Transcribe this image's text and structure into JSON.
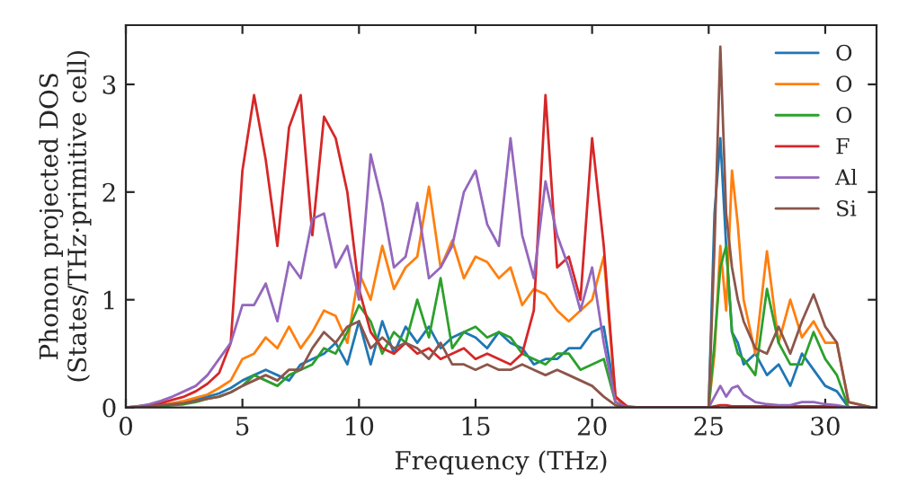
{
  "chart_data": {
    "type": "line",
    "xlabel": "Frequency (THz)",
    "ylabel": "Phonon projected DOS\n(States/THz·primitive cell)",
    "x": [
      0,
      0.5,
      1,
      1.5,
      2,
      2.5,
      3,
      3.5,
      4,
      4.5,
      5,
      5.5,
      6,
      6.5,
      7,
      7.5,
      8,
      8.5,
      9,
      9.5,
      10,
      10.5,
      11,
      11.5,
      12,
      12.5,
      13,
      13.5,
      14,
      14.5,
      15,
      15.5,
      16,
      16.5,
      17,
      17.5,
      18,
      18.5,
      19,
      19.5,
      20,
      20.5,
      21,
      21.5,
      22,
      25,
      25.25,
      25.5,
      25.75,
      26,
      26.25,
      26.5,
      27,
      27.5,
      28,
      28.5,
      29,
      29.5,
      30,
      30.5,
      31,
      32
    ],
    "series": [
      {
        "name": "O",
        "color": "#1f77b4",
        "values": [
          null,
          null,
          null,
          null,
          null,
          0.05,
          0.07,
          0.1,
          0.13,
          0.18,
          0.25,
          0.3,
          0.35,
          0.3,
          0.25,
          0.4,
          0.45,
          0.5,
          0.6,
          0.4,
          0.8,
          0.4,
          0.8,
          0.5,
          0.75,
          0.6,
          0.75,
          0.55,
          0.65,
          0.7,
          0.65,
          0.55,
          0.7,
          0.6,
          0.55,
          0.4,
          0.45,
          0.45,
          0.55,
          0.55,
          0.7,
          0.75,
          0.1,
          0,
          0,
          0,
          1.8,
          2.5,
          1.5,
          0.7,
          0.6,
          0.4,
          0.5,
          0.3,
          0.4,
          0.2,
          0.5,
          0.35,
          0.2,
          0.15,
          0,
          0
        ]
      },
      {
        "name": "O",
        "color": "#ff7f0e",
        "values": [
          null,
          null,
          0.01,
          0.02,
          0.04,
          0.06,
          0.09,
          0.12,
          0.18,
          0.25,
          0.45,
          0.5,
          0.65,
          0.55,
          0.75,
          0.55,
          0.7,
          0.9,
          0.85,
          0.6,
          1.25,
          1.0,
          1.5,
          1.1,
          1.3,
          1.4,
          2.05,
          1.3,
          1.55,
          1.2,
          1.4,
          1.35,
          1.2,
          1.3,
          0.95,
          1.1,
          1.05,
          0.9,
          0.8,
          0.9,
          1.0,
          1.4,
          0.1,
          0,
          0,
          0,
          0.5,
          1.5,
          0.9,
          2.2,
          1.7,
          1.0,
          0.5,
          1.45,
          0.6,
          1.0,
          0.65,
          0.8,
          0.6,
          0.6,
          0.05,
          0
        ]
      },
      {
        "name": "O",
        "color": "#2ca02c",
        "values": [
          null,
          null,
          null,
          0.01,
          0.02,
          0.03,
          0.05,
          0.08,
          0.1,
          0.14,
          0.2,
          0.3,
          0.25,
          0.2,
          0.3,
          0.35,
          0.4,
          0.55,
          0.5,
          0.7,
          0.95,
          0.8,
          0.5,
          0.7,
          0.6,
          1.0,
          0.65,
          1.2,
          0.55,
          0.7,
          0.75,
          0.65,
          0.7,
          0.65,
          0.5,
          0.45,
          0.4,
          0.5,
          0.5,
          0.35,
          0.4,
          0.45,
          0.05,
          0,
          0,
          0,
          0.6,
          1.3,
          1.5,
          0.7,
          0.5,
          0.45,
          0.3,
          1.1,
          0.6,
          0.4,
          0.4,
          0.7,
          0.45,
          0.3,
          0,
          0
        ]
      },
      {
        "name": "F",
        "color": "#d62728",
        "values": [
          0,
          0.01,
          0.02,
          0.04,
          0.07,
          0.1,
          0.15,
          0.22,
          0.32,
          0.6,
          2.2,
          2.9,
          2.3,
          1.5,
          2.6,
          2.9,
          1.6,
          2.7,
          2.5,
          2.0,
          1.1,
          0.7,
          0.55,
          0.5,
          0.6,
          0.5,
          0.55,
          0.45,
          0.5,
          0.55,
          0.45,
          0.5,
          0.45,
          0.4,
          0.5,
          0.9,
          2.9,
          1.3,
          1.4,
          1.0,
          2.5,
          1.5,
          0.1,
          0.01,
          0,
          0,
          0.01,
          0.02,
          0.02,
          0.01,
          0.01,
          0.01,
          0.01,
          0.01,
          0.01,
          0.01,
          0.01,
          0.01,
          0.01,
          0.01,
          0,
          0
        ]
      },
      {
        "name": "Al",
        "color": "#9467bd",
        "values": [
          0,
          0.01,
          0.03,
          0.06,
          0.1,
          0.15,
          0.2,
          0.3,
          0.45,
          0.6,
          0.95,
          0.95,
          1.15,
          0.8,
          1.35,
          1.2,
          1.75,
          1.8,
          1.3,
          1.5,
          1.0,
          2.35,
          1.9,
          1.3,
          1.4,
          1.9,
          1.2,
          1.3,
          1.5,
          2.0,
          2.2,
          1.7,
          1.5,
          2.5,
          1.6,
          1.2,
          2.1,
          1.6,
          1.3,
          0.9,
          1.3,
          0.6,
          0.05,
          0,
          0,
          0,
          0.1,
          0.2,
          0.1,
          0.18,
          0.2,
          0.12,
          0.05,
          0.03,
          0.02,
          0.02,
          0.05,
          0.05,
          0.03,
          0.02,
          0,
          0
        ]
      },
      {
        "name": "Si",
        "color": "#8c564b",
        "values": [
          0,
          0,
          0.01,
          0.02,
          0.03,
          0.04,
          0.06,
          0.08,
          0.1,
          0.14,
          0.2,
          0.25,
          0.3,
          0.25,
          0.35,
          0.35,
          0.55,
          0.7,
          0.6,
          0.75,
          0.8,
          0.55,
          0.65,
          0.55,
          0.6,
          0.55,
          0.45,
          0.6,
          0.4,
          0.4,
          0.35,
          0.4,
          0.35,
          0.35,
          0.4,
          0.35,
          0.3,
          0.35,
          0.3,
          0.25,
          0.2,
          0.1,
          0.02,
          0,
          null,
          0,
          1.5,
          3.35,
          1.8,
          1.3,
          1.0,
          0.8,
          0.55,
          0.5,
          0.75,
          0.5,
          0.8,
          1.05,
          0.75,
          0.6,
          0.05,
          0
        ]
      }
    ],
    "xlim": [
      0,
      32.2
    ],
    "ylim": [
      0,
      3.55
    ],
    "xticks": [
      0,
      5,
      10,
      15,
      20,
      25,
      30
    ],
    "yticks": [
      0,
      1,
      2,
      3
    ],
    "legend": "top right",
    "grid": false
  }
}
